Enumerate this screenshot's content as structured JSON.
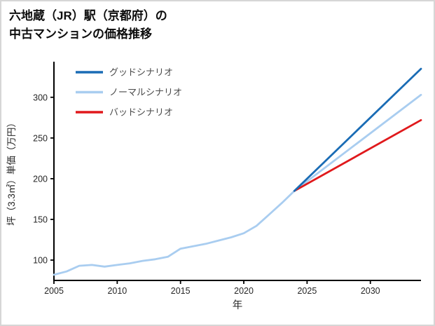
{
  "window": {
    "background": "#ffffff",
    "border_color": "#d6d6d6"
  },
  "title": {
    "line1": "六地蔵（JR）駅（京都府）の",
    "line2": "中古マンションの価格推移"
  },
  "chart_data": {
    "type": "line",
    "title": "六地蔵（JR）駅（京都府）の中古マンションの価格推移",
    "xlabel": "年",
    "ylabel": "坪（3.3㎡）単価（万円）",
    "xlim": [
      2005,
      2034
    ],
    "ylim": [
      75,
      342
    ],
    "xticks": [
      2005,
      2010,
      2015,
      2020,
      2025,
      2030
    ],
    "yticks": [
      100,
      150,
      200,
      250,
      300
    ],
    "grid": false,
    "legend_position": "top-left",
    "axis_color": "#000000",
    "tick_label_color": "#262626",
    "legend_text_color": "#4a4a4a",
    "series": [
      {
        "id": "good-scenario",
        "name": "グッドシナリオ",
        "color": "#1a6cb5",
        "x": [
          2024,
          2034
        ],
        "y": [
          185,
          335
        ]
      },
      {
        "id": "normal-scenario",
        "name": "ノーマルシナリオ",
        "color": "#a9cdf0",
        "x": [
          2005,
          2006,
          2007,
          2008,
          2009,
          2010,
          2011,
          2012,
          2013,
          2014,
          2015,
          2016,
          2017,
          2018,
          2019,
          2020,
          2021,
          2022,
          2023,
          2024,
          2034
        ],
        "y": [
          82,
          86,
          93,
          94,
          92,
          94,
          96,
          99,
          101,
          104,
          114,
          117,
          120,
          124,
          128,
          133,
          142,
          156,
          170,
          185,
          303
        ]
      },
      {
        "id": "bad-scenario",
        "name": "バッドシナリオ",
        "color": "#e0191c",
        "x": [
          2024,
          2034
        ],
        "y": [
          185,
          272
        ]
      }
    ]
  }
}
